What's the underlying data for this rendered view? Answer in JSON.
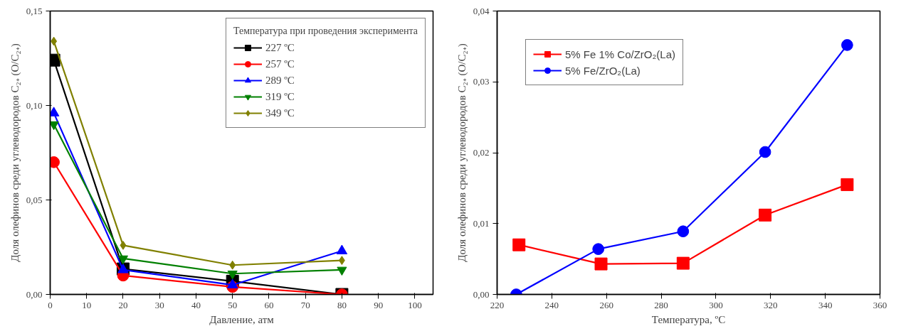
{
  "chart_data": [
    {
      "type": "line",
      "xlabel": "Давление, атм",
      "ylabel": "Доля олефинов среди углеводородов C₂₊ (O/C₂₊)",
      "legend_title": "Температура при проведения эксперимента",
      "legend": "top right",
      "grid": false,
      "line_style": "solid",
      "xlim": [
        0,
        105
      ],
      "xticks": [
        0,
        10,
        20,
        30,
        40,
        50,
        60,
        70,
        80,
        90,
        100
      ],
      "ylim": [
        0,
        0.15
      ],
      "yticks": [
        {
          "value": 0,
          "label": "0,00"
        },
        {
          "value": 0.05,
          "label": "0,05"
        },
        {
          "value": 0.1,
          "label": "0,10"
        },
        {
          "value": 0.15,
          "label": "0,15"
        }
      ],
      "x": [
        1,
        20,
        50,
        80
      ],
      "series": [
        {
          "name": "227 ºC",
          "color": "#000000",
          "marker": "square",
          "values": [
            0.124,
            0.0135,
            0.007,
            0.0
          ]
        },
        {
          "name": "257 ºC",
          "color": "#ff0000",
          "marker": "circle",
          "values": [
            0.07,
            0.01,
            0.004,
            0.0
          ]
        },
        {
          "name": "289 ºC",
          "color": "#0000ff",
          "marker": "triangle",
          "values": [
            0.096,
            0.013,
            0.005,
            0.023
          ]
        },
        {
          "name": "319 ºC",
          "color": "#008000",
          "marker": "triangle",
          "values": [
            0.09,
            0.019,
            0.011,
            0.013
          ]
        },
        {
          "name": "349 ºC",
          "color": "#808000",
          "marker": "diamond",
          "values": [
            0.134,
            0.026,
            0.0155,
            0.018
          ]
        }
      ]
    },
    {
      "type": "line",
      "xlabel": "Температура, ºC",
      "ylabel": "Доля олефинов среди углеводородов C₂₊ (O/C₂₊)",
      "legend": "top left",
      "grid": false,
      "line_style": "solid",
      "xlim": [
        220,
        360
      ],
      "xticks": [
        220,
        240,
        260,
        280,
        300,
        320,
        340,
        360
      ],
      "ylim": [
        0,
        0.04
      ],
      "yticks": [
        {
          "value": 0,
          "label": "0,00"
        },
        {
          "value": 0.01,
          "label": "0,01"
        },
        {
          "value": 0.02,
          "label": "0,02"
        },
        {
          "value": 0.03,
          "label": "0,03"
        },
        {
          "value": 0.04,
          "label": "0,04"
        }
      ],
      "series": [
        {
          "name": "5% Fe 1% Co/ZrO₂(La)",
          "color": "#ff0000",
          "marker": "square",
          "x": [
            228,
            258,
            288,
            318,
            348
          ],
          "values": [
            0.007,
            0.0043,
            0.0044,
            0.0112,
            0.0155
          ]
        },
        {
          "name": "5% Fe/ZrO₂(La)",
          "color": "#0000ff",
          "marker": "circle",
          "x": [
            227,
            257,
            288,
            318,
            348
          ],
          "values": [
            0.0,
            0.0064,
            0.0089,
            0.0201,
            0.0352
          ]
        }
      ]
    }
  ]
}
